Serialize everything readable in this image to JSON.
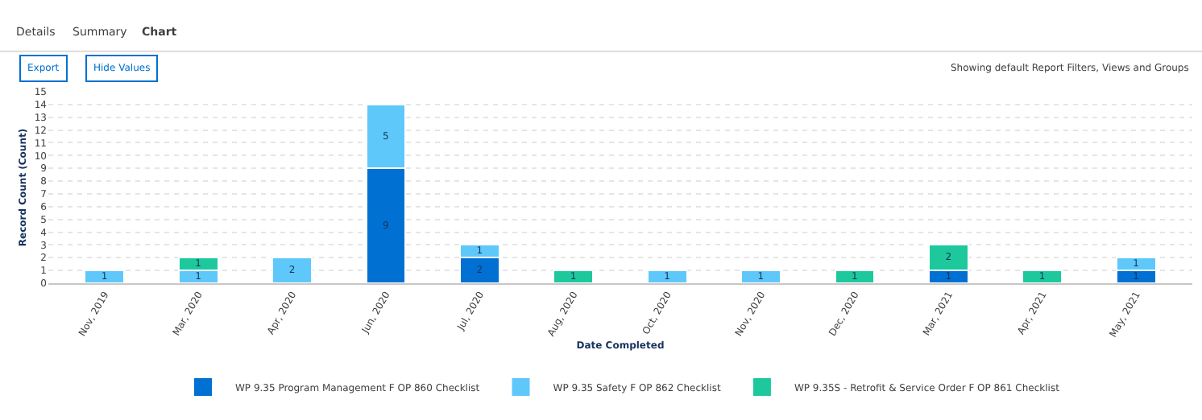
{
  "chart_data": {
    "type": "bar",
    "stacked": true,
    "xlabel": "Date Completed",
    "ylabel": "Record Count (Count)",
    "categories": [
      "Nov, 2019",
      "Mar, 2020",
      "Apr, 2020",
      "Jun, 2020",
      "Jul, 2020",
      "Aug, 2020",
      "Oct, 2020",
      "Nov, 2020",
      "Dec, 2020",
      "Mar, 2021",
      "Apr, 2021",
      "May, 2021"
    ],
    "series": [
      {
        "name": "WP 9.35 Program Management F OP 860 Checklist",
        "color": "#0070d2",
        "values": [
          null,
          null,
          null,
          9,
          2,
          null,
          null,
          null,
          null,
          1,
          null,
          1
        ]
      },
      {
        "name": "WP 9.35 Safety F OP 862 Checklist",
        "color": "#5fc8fa",
        "values": [
          1,
          1,
          2,
          5,
          1,
          null,
          1,
          1,
          null,
          null,
          null,
          1
        ]
      },
      {
        "name": "WP 9.35S - Retrofit & Service Order F OP 861 Checklist",
        "color": "#1dc99c",
        "values": [
          null,
          1,
          null,
          null,
          null,
          1,
          null,
          null,
          1,
          2,
          1,
          null
        ]
      }
    ],
    "ylim": [
      0,
      15
    ],
    "yticks": [
      0,
      1,
      2,
      3,
      4,
      5,
      6,
      7,
      8,
      9,
      10,
      11,
      12,
      13,
      14,
      15
    ],
    "grid": "y",
    "legend": "bottom",
    "data_labels": true,
    "annotations": [
      "Details",
      "Summary",
      "Chart",
      "Export",
      "Hide Values",
      "Showing default Report Filters, Views and Groups"
    ]
  }
}
